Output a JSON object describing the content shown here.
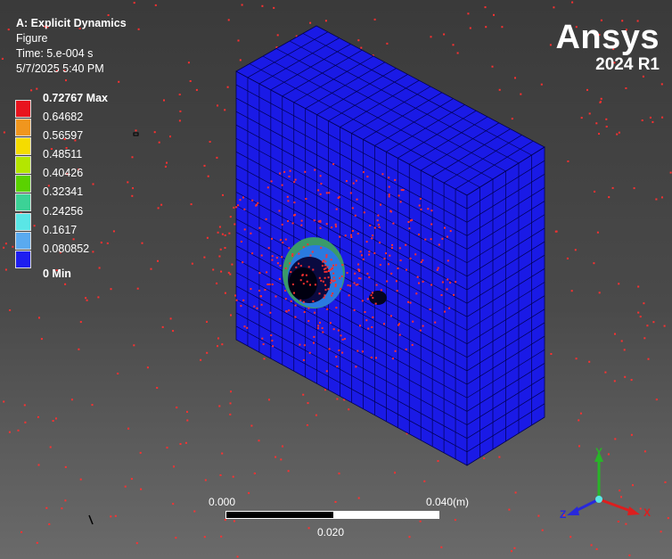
{
  "info": {
    "system": "A: Explicit Dynamics",
    "result": "Figure",
    "time": "Time: 5.e-004 s",
    "date": "5/7/2025 5:40 PM"
  },
  "brand": {
    "name": "Ansys",
    "version": "2024 R1"
  },
  "legend": {
    "labels": [
      "0.72767 Max",
      "0.64682",
      "0.56597",
      "0.48511",
      "0.40426",
      "0.32341",
      "0.24256",
      "0.1617",
      "0.080852"
    ],
    "min_label": "0 Min",
    "colors": [
      "#e8141e",
      "#f0961e",
      "#f5dc00",
      "#b4e600",
      "#5ad200",
      "#3cd296",
      "#5ae6e6",
      "#5aaaf0",
      "#1e1ef0"
    ]
  },
  "scale_bar": {
    "start": "0.000",
    "mid": "0.020",
    "end": "0.040",
    "unit": "(m)"
  },
  "triad": {
    "x": "X",
    "y": "Y",
    "z": "Z",
    "colors": {
      "x": "#dc1e1e",
      "y": "#28b428",
      "z": "#2828dc"
    }
  },
  "model": {
    "colors": {
      "mesh_fill": "#1a1ae6",
      "mesh_line": "#000050",
      "particles": "#ff3030"
    }
  }
}
